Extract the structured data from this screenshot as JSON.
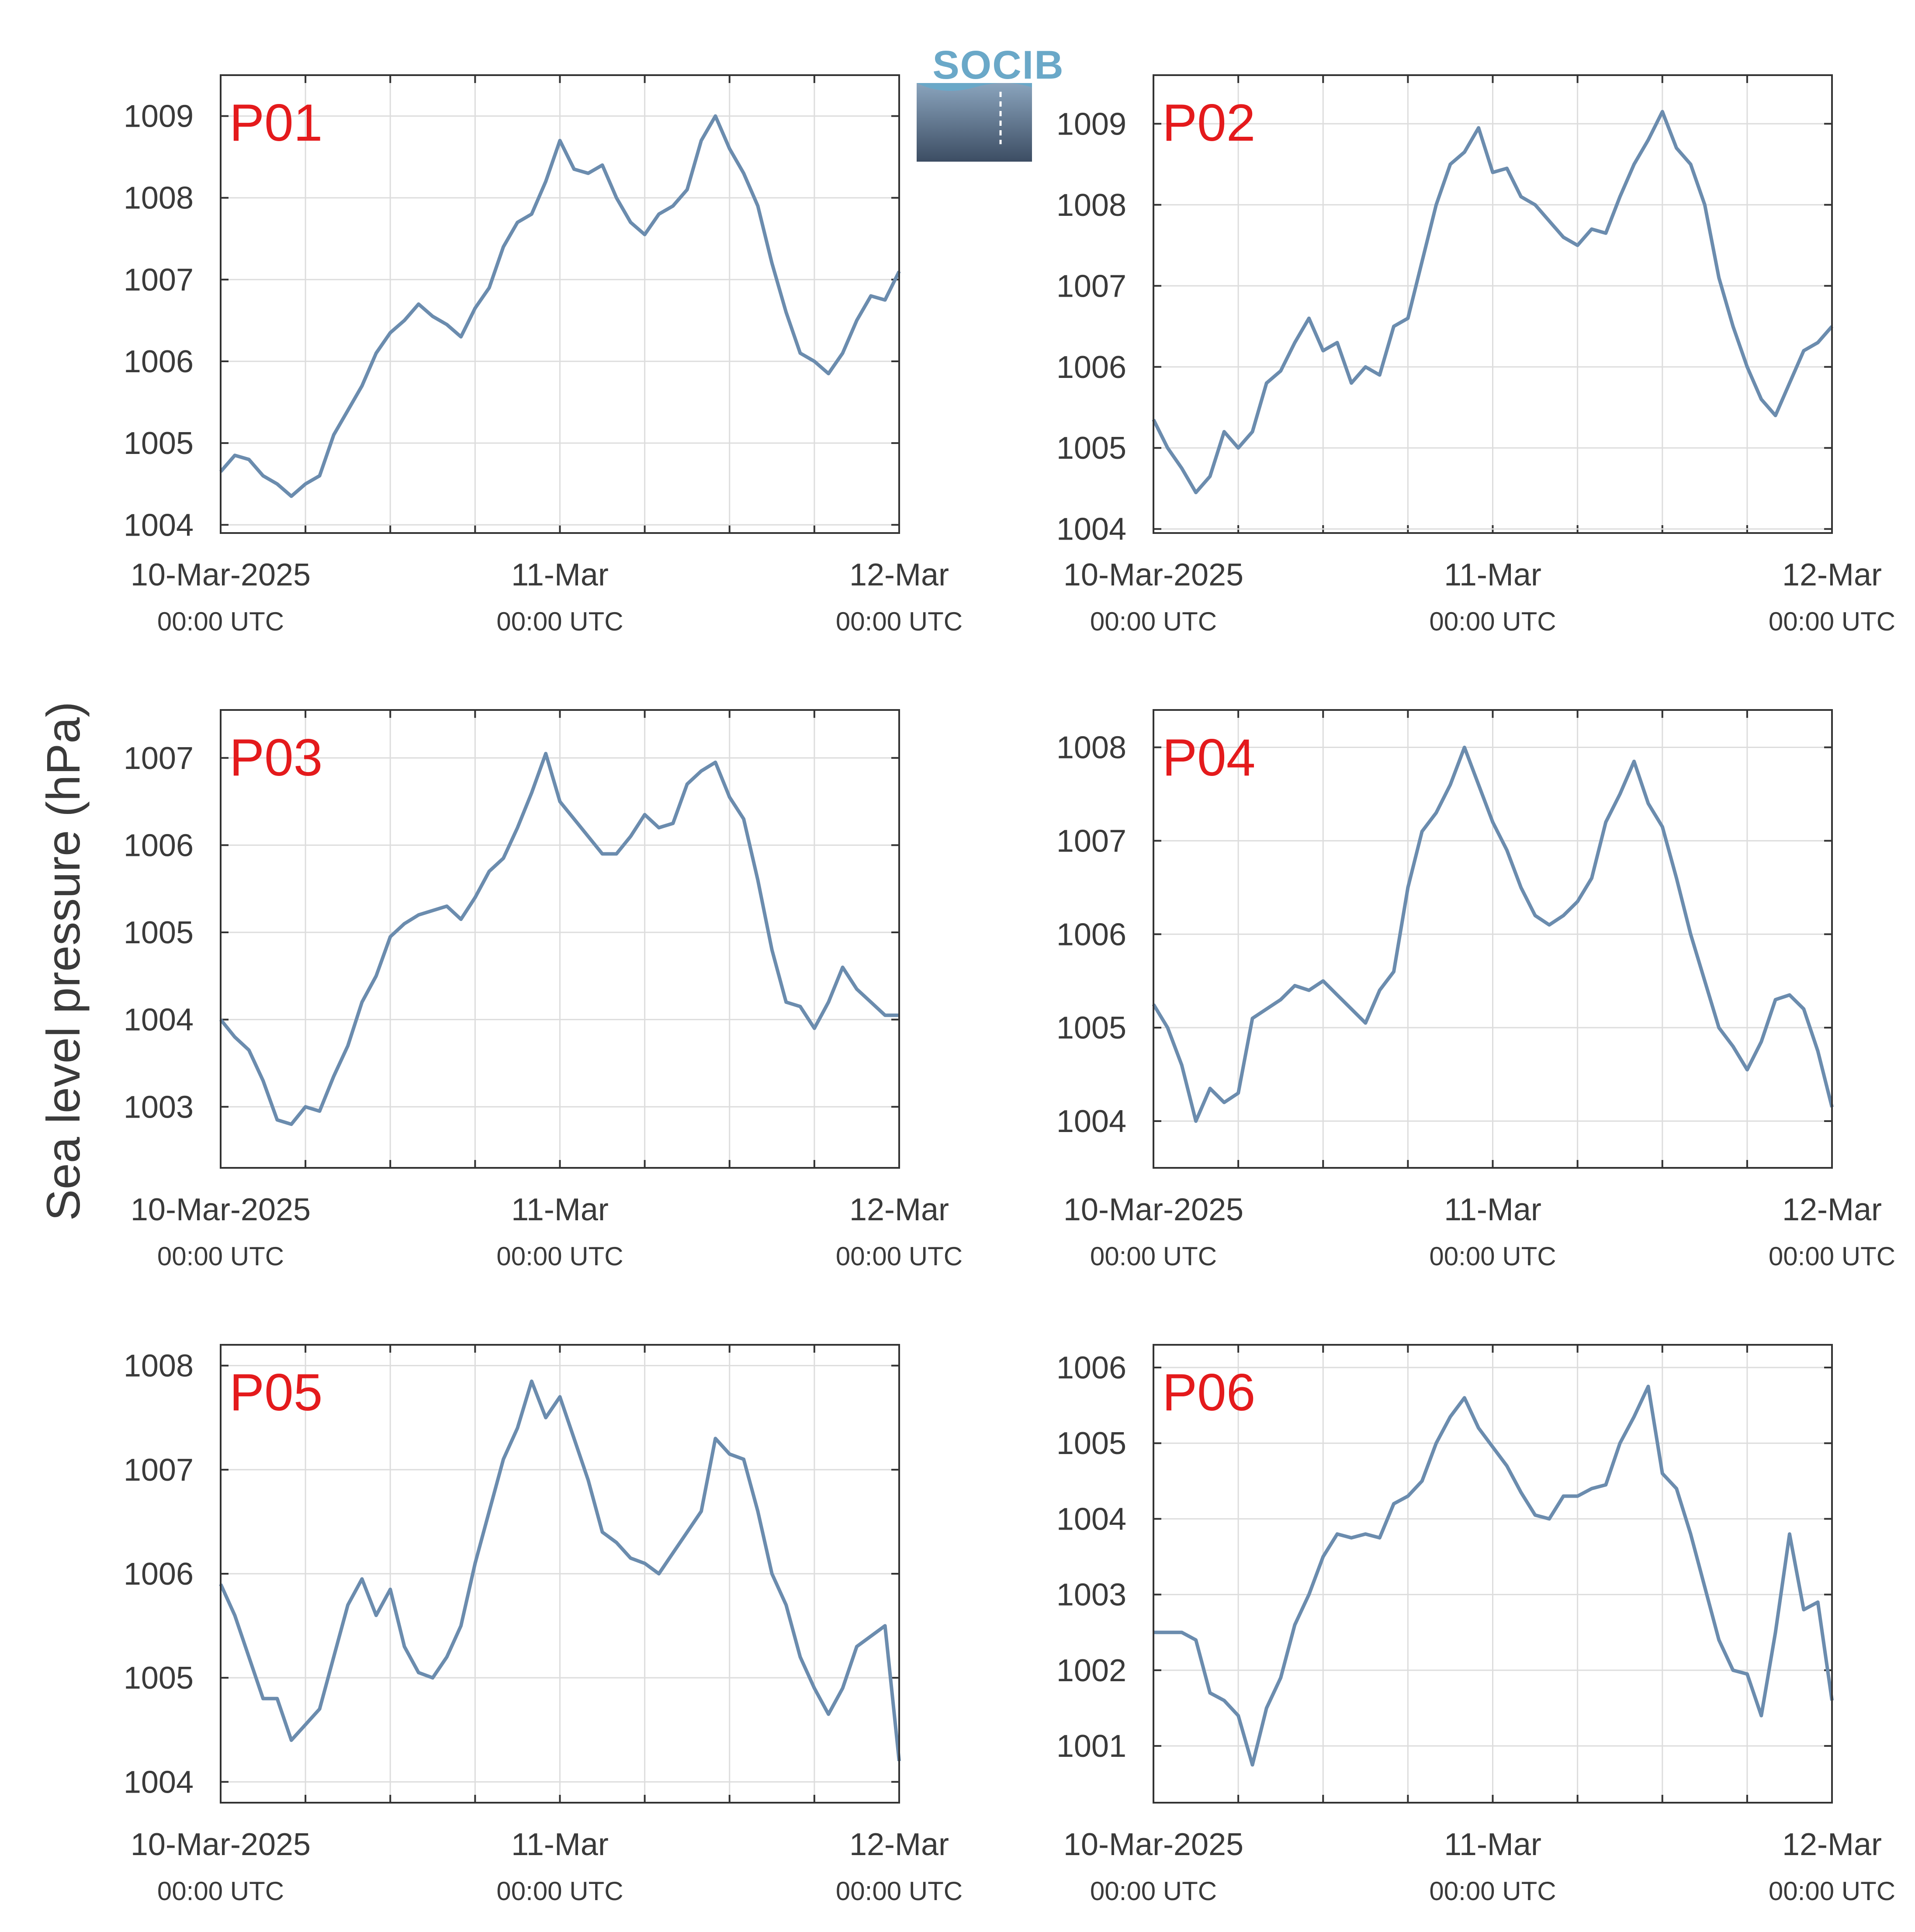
{
  "logo": {
    "text": "SOCIB"
  },
  "colors": {
    "series": "#6b8cae",
    "panel_label": "#e41a1c",
    "grid": "#dddddd",
    "axis": "#333333"
  },
  "chart_data": [
    {
      "type": "line",
      "title": "P01",
      "ylabel": "Sea level pressure (hPa)",
      "xlim": [
        "2025-03-10T00:00",
        "2025-03-12T00:00"
      ],
      "ylim": [
        1003.9,
        1009.5
      ],
      "yticks": [
        "1004",
        "1005",
        "1006",
        "1007",
        "1008",
        "1009"
      ],
      "xticks": [
        {
          "label": "10-Mar-2025",
          "sub": "00:00 UTC"
        },
        {
          "label": "11-Mar",
          "sub": "00:00 UTC"
        },
        {
          "label": "12-Mar",
          "sub": "00:00 UTC"
        }
      ],
      "grid": true,
      "series": [
        {
          "x": [
            "2025-03-10T00:00",
            "2025-03-10T01:00",
            "2025-03-10T02:00",
            "2025-03-10T03:00",
            "2025-03-10T04:00",
            "2025-03-10T05:00",
            "2025-03-10T06:00",
            "2025-03-10T07:00",
            "2025-03-10T08:00",
            "2025-03-10T09:00",
            "2025-03-10T10:00",
            "2025-03-10T11:00",
            "2025-03-10T12:00",
            "2025-03-10T13:00",
            "2025-03-10T14:00",
            "2025-03-10T15:00",
            "2025-03-10T16:00",
            "2025-03-10T17:00",
            "2025-03-10T18:00",
            "2025-03-10T19:00",
            "2025-03-10T20:00",
            "2025-03-10T21:00",
            "2025-03-10T22:00",
            "2025-03-10T23:00",
            "2025-03-11T00:00",
            "2025-03-11T01:00",
            "2025-03-11T02:00",
            "2025-03-11T03:00",
            "2025-03-11T04:00",
            "2025-03-11T05:00",
            "2025-03-11T06:00",
            "2025-03-11T07:00",
            "2025-03-11T08:00",
            "2025-03-11T09:00",
            "2025-03-11T10:00",
            "2025-03-11T11:00",
            "2025-03-11T12:00",
            "2025-03-11T13:00",
            "2025-03-11T14:00",
            "2025-03-11T15:00",
            "2025-03-11T16:00",
            "2025-03-11T17:00",
            "2025-03-11T18:00",
            "2025-03-11T19:00",
            "2025-03-11T20:00",
            "2025-03-11T21:00",
            "2025-03-11T22:00",
            "2025-03-11T23:00",
            "2025-03-12T00:00"
          ],
          "values": [
            1004.65,
            1004.85,
            1004.8,
            1004.6,
            1004.5,
            1004.35,
            1004.5,
            1004.6,
            1005.1,
            1005.4,
            1005.7,
            1006.1,
            1006.35,
            1006.5,
            1006.7,
            1006.55,
            1006.45,
            1006.3,
            1006.65,
            1006.9,
            1007.4,
            1007.7,
            1007.8,
            1008.2,
            1008.7,
            1008.35,
            1008.3,
            1008.4,
            1008.0,
            1007.7,
            1007.55,
            1007.8,
            1007.9,
            1008.1,
            1008.7,
            1009.0,
            1008.6,
            1008.3,
            1007.9,
            1007.2,
            1006.6,
            1006.1,
            1006.0,
            1005.85,
            1006.1,
            1006.5,
            1006.8,
            1006.75,
            1007.1
          ]
        }
      ]
    },
    {
      "type": "line",
      "title": "P02",
      "xlim": [
        "2025-03-10T00:00",
        "2025-03-12T00:00"
      ],
      "ylim": [
        1003.95,
        1009.6
      ],
      "yticks": [
        "1004",
        "1005",
        "1006",
        "1007",
        "1008",
        "1009"
      ],
      "xticks": [
        {
          "label": "10-Mar-2025",
          "sub": "00:00 UTC"
        },
        {
          "label": "11-Mar",
          "sub": "00:00 UTC"
        },
        {
          "label": "12-Mar",
          "sub": "00:00 UTC"
        }
      ],
      "grid": true,
      "series": [
        {
          "x": [
            "2025-03-10T00:00",
            "2025-03-10T01:00",
            "2025-03-10T02:00",
            "2025-03-10T03:00",
            "2025-03-10T04:00",
            "2025-03-10T05:00",
            "2025-03-10T06:00",
            "2025-03-10T07:00",
            "2025-03-10T08:00",
            "2025-03-10T09:00",
            "2025-03-10T10:00",
            "2025-03-10T11:00",
            "2025-03-10T12:00",
            "2025-03-10T13:00",
            "2025-03-10T14:00",
            "2025-03-10T15:00",
            "2025-03-10T16:00",
            "2025-03-10T17:00",
            "2025-03-10T18:00",
            "2025-03-10T19:00",
            "2025-03-10T20:00",
            "2025-03-10T21:00",
            "2025-03-10T22:00",
            "2025-03-10T23:00",
            "2025-03-11T00:00",
            "2025-03-11T01:00",
            "2025-03-11T02:00",
            "2025-03-11T03:00",
            "2025-03-11T04:00",
            "2025-03-11T05:00",
            "2025-03-11T06:00",
            "2025-03-11T07:00",
            "2025-03-11T08:00",
            "2025-03-11T09:00",
            "2025-03-11T10:00",
            "2025-03-11T11:00",
            "2025-03-11T12:00",
            "2025-03-11T13:00",
            "2025-03-11T14:00",
            "2025-03-11T15:00",
            "2025-03-11T16:00",
            "2025-03-11T17:00",
            "2025-03-11T18:00",
            "2025-03-11T19:00",
            "2025-03-11T20:00",
            "2025-03-11T21:00",
            "2025-03-11T22:00",
            "2025-03-11T23:00",
            "2025-03-12T00:00"
          ],
          "values": [
            1005.35,
            1005.0,
            1004.75,
            1004.45,
            1004.65,
            1005.2,
            1005.0,
            1005.2,
            1005.8,
            1005.95,
            1006.3,
            1006.6,
            1006.2,
            1006.3,
            1005.8,
            1006.0,
            1005.9,
            1006.5,
            1006.6,
            1007.3,
            1008.0,
            1008.5,
            1008.65,
            1008.95,
            1008.4,
            1008.45,
            1008.1,
            1008.0,
            1007.8,
            1007.6,
            1007.5,
            1007.7,
            1007.65,
            1008.1,
            1008.5,
            1008.8,
            1009.15,
            1008.7,
            1008.5,
            1008.0,
            1007.1,
            1006.5,
            1006.0,
            1005.6,
            1005.4,
            1005.8,
            1006.2,
            1006.3,
            1006.5
          ]
        }
      ]
    },
    {
      "type": "line",
      "title": "P03",
      "xlim": [
        "2025-03-10T00:00",
        "2025-03-12T00:00"
      ],
      "ylim": [
        1002.3,
        1007.55
      ],
      "yticks": [
        "1003",
        "1004",
        "1005",
        "1006",
        "1007"
      ],
      "xticks": [
        {
          "label": "10-Mar-2025",
          "sub": "00:00 UTC"
        },
        {
          "label": "11-Mar",
          "sub": "00:00 UTC"
        },
        {
          "label": "12-Mar",
          "sub": "00:00 UTC"
        }
      ],
      "grid": true,
      "series": [
        {
          "x": [
            "2025-03-10T00:00",
            "2025-03-10T01:00",
            "2025-03-10T02:00",
            "2025-03-10T03:00",
            "2025-03-10T04:00",
            "2025-03-10T05:00",
            "2025-03-10T06:00",
            "2025-03-10T07:00",
            "2025-03-10T08:00",
            "2025-03-10T09:00",
            "2025-03-10T10:00",
            "2025-03-10T11:00",
            "2025-03-10T12:00",
            "2025-03-10T13:00",
            "2025-03-10T14:00",
            "2025-03-10T15:00",
            "2025-03-10T16:00",
            "2025-03-10T17:00",
            "2025-03-10T18:00",
            "2025-03-10T19:00",
            "2025-03-10T20:00",
            "2025-03-10T21:00",
            "2025-03-10T22:00",
            "2025-03-10T23:00",
            "2025-03-11T00:00",
            "2025-03-11T01:00",
            "2025-03-11T02:00",
            "2025-03-11T03:00",
            "2025-03-11T04:00",
            "2025-03-11T05:00",
            "2025-03-11T06:00",
            "2025-03-11T07:00",
            "2025-03-11T08:00",
            "2025-03-11T09:00",
            "2025-03-11T10:00",
            "2025-03-11T11:00",
            "2025-03-11T12:00",
            "2025-03-11T13:00",
            "2025-03-11T14:00",
            "2025-03-11T15:00",
            "2025-03-11T16:00",
            "2025-03-11T17:00",
            "2025-03-11T18:00",
            "2025-03-11T19:00",
            "2025-03-11T20:00",
            "2025-03-11T21:00",
            "2025-03-11T22:00",
            "2025-03-11T23:00",
            "2025-03-12T00:00"
          ],
          "values": [
            1004.0,
            1003.8,
            1003.65,
            1003.3,
            1002.85,
            1002.8,
            1003.0,
            1002.95,
            1003.35,
            1003.7,
            1004.2,
            1004.5,
            1004.95,
            1005.1,
            1005.2,
            1005.25,
            1005.3,
            1005.15,
            1005.4,
            1005.7,
            1005.85,
            1006.2,
            1006.6,
            1007.05,
            1006.5,
            1006.3,
            1006.1,
            1005.9,
            1005.9,
            1006.1,
            1006.35,
            1006.2,
            1006.25,
            1006.7,
            1006.85,
            1006.95,
            1006.55,
            1006.3,
            1005.6,
            1004.8,
            1004.2,
            1004.15,
            1003.9,
            1004.2,
            1004.6,
            1004.35,
            1004.2,
            1004.05,
            1004.05
          ]
        }
      ]
    },
    {
      "type": "line",
      "title": "P04",
      "xlim": [
        "2025-03-10T00:00",
        "2025-03-12T00:00"
      ],
      "ylim": [
        1003.5,
        1008.4
      ],
      "yticks": [
        "1004",
        "1005",
        "1006",
        "1007",
        "1008"
      ],
      "xticks": [
        {
          "label": "10-Mar-2025",
          "sub": "00:00 UTC"
        },
        {
          "label": "11-Mar",
          "sub": "00:00 UTC"
        },
        {
          "label": "12-Mar",
          "sub": "00:00 UTC"
        }
      ],
      "grid": true,
      "series": [
        {
          "x": [
            "2025-03-10T00:00",
            "2025-03-10T01:00",
            "2025-03-10T02:00",
            "2025-03-10T03:00",
            "2025-03-10T04:00",
            "2025-03-10T05:00",
            "2025-03-10T06:00",
            "2025-03-10T07:00",
            "2025-03-10T08:00",
            "2025-03-10T09:00",
            "2025-03-10T10:00",
            "2025-03-10T11:00",
            "2025-03-10T12:00",
            "2025-03-10T13:00",
            "2025-03-10T14:00",
            "2025-03-10T15:00",
            "2025-03-10T16:00",
            "2025-03-10T17:00",
            "2025-03-10T18:00",
            "2025-03-10T19:00",
            "2025-03-10T20:00",
            "2025-03-10T21:00",
            "2025-03-10T22:00",
            "2025-03-10T23:00",
            "2025-03-11T00:00",
            "2025-03-11T01:00",
            "2025-03-11T02:00",
            "2025-03-11T03:00",
            "2025-03-11T04:00",
            "2025-03-11T05:00",
            "2025-03-11T06:00",
            "2025-03-11T07:00",
            "2025-03-11T08:00",
            "2025-03-11T09:00",
            "2025-03-11T10:00",
            "2025-03-11T11:00",
            "2025-03-11T12:00",
            "2025-03-11T13:00",
            "2025-03-11T14:00",
            "2025-03-11T15:00",
            "2025-03-11T16:00",
            "2025-03-11T17:00",
            "2025-03-11T18:00",
            "2025-03-11T19:00",
            "2025-03-11T20:00",
            "2025-03-11T21:00",
            "2025-03-11T22:00",
            "2025-03-11T23:00",
            "2025-03-12T00:00"
          ],
          "values": [
            1005.25,
            1005.0,
            1004.6,
            1004.0,
            1004.35,
            1004.2,
            1004.3,
            1005.1,
            1005.2,
            1005.3,
            1005.45,
            1005.4,
            1005.5,
            1005.35,
            1005.2,
            1005.05,
            1005.4,
            1005.6,
            1006.5,
            1007.1,
            1007.3,
            1007.6,
            1008.0,
            1007.6,
            1007.2,
            1006.9,
            1006.5,
            1006.2,
            1006.1,
            1006.2,
            1006.35,
            1006.6,
            1007.2,
            1007.5,
            1007.85,
            1007.4,
            1007.15,
            1006.6,
            1006.0,
            1005.5,
            1005.0,
            1004.8,
            1004.55,
            1004.85,
            1005.3,
            1005.35,
            1005.2,
            1004.75,
            1004.15
          ]
        }
      ]
    },
    {
      "type": "line",
      "title": "P05",
      "xlim": [
        "2025-03-10T00:00",
        "2025-03-12T00:00"
      ],
      "ylim": [
        1003.8,
        1008.2
      ],
      "yticks": [
        "1004",
        "1005",
        "1006",
        "1007",
        "1008"
      ],
      "xticks": [
        {
          "label": "10-Mar-2025",
          "sub": "00:00 UTC"
        },
        {
          "label": "11-Mar",
          "sub": "00:00 UTC"
        },
        {
          "label": "12-Mar",
          "sub": "00:00 UTC"
        }
      ],
      "grid": true,
      "series": [
        {
          "x": [
            "2025-03-10T00:00",
            "2025-03-10T01:00",
            "2025-03-10T02:00",
            "2025-03-10T03:00",
            "2025-03-10T04:00",
            "2025-03-10T05:00",
            "2025-03-10T06:00",
            "2025-03-10T07:00",
            "2025-03-10T08:00",
            "2025-03-10T09:00",
            "2025-03-10T10:00",
            "2025-03-10T11:00",
            "2025-03-10T12:00",
            "2025-03-10T13:00",
            "2025-03-10T14:00",
            "2025-03-10T15:00",
            "2025-03-10T16:00",
            "2025-03-10T17:00",
            "2025-03-10T18:00",
            "2025-03-10T19:00",
            "2025-03-10T20:00",
            "2025-03-10T21:00",
            "2025-03-10T22:00",
            "2025-03-10T23:00",
            "2025-03-11T00:00",
            "2025-03-11T01:00",
            "2025-03-11T02:00",
            "2025-03-11T03:00",
            "2025-03-11T04:00",
            "2025-03-11T05:00",
            "2025-03-11T06:00",
            "2025-03-11T07:00",
            "2025-03-11T08:00",
            "2025-03-11T09:00",
            "2025-03-11T10:00",
            "2025-03-11T11:00",
            "2025-03-11T12:00",
            "2025-03-11T13:00",
            "2025-03-11T14:00",
            "2025-03-11T15:00",
            "2025-03-11T16:00",
            "2025-03-11T17:00",
            "2025-03-11T18:00",
            "2025-03-11T19:00",
            "2025-03-11T20:00",
            "2025-03-11T21:00",
            "2025-03-11T22:00",
            "2025-03-11T23:00",
            "2025-03-12T00:00"
          ],
          "values": [
            1005.9,
            1005.6,
            1005.2,
            1004.8,
            1004.8,
            1004.4,
            1004.55,
            1004.7,
            1005.2,
            1005.7,
            1005.95,
            1005.6,
            1005.85,
            1005.3,
            1005.05,
            1005.0,
            1005.2,
            1005.5,
            1006.1,
            1006.6,
            1007.1,
            1007.4,
            1007.85,
            1007.5,
            1007.7,
            1007.3,
            1006.9,
            1006.4,
            1006.3,
            1006.15,
            1006.1,
            1006.0,
            1006.2,
            1006.4,
            1006.6,
            1007.3,
            1007.15,
            1007.1,
            1006.6,
            1006.0,
            1005.7,
            1005.2,
            1004.9,
            1004.65,
            1004.9,
            1005.3,
            1005.4,
            1005.5,
            1004.2
          ]
        }
      ]
    },
    {
      "type": "line",
      "title": "P06",
      "xlim": [
        "2025-03-10T00:00",
        "2025-03-12T00:00"
      ],
      "ylim": [
        1000.25,
        1006.3
      ],
      "yticks": [
        "1001",
        "1002",
        "1003",
        "1004",
        "1005",
        "1006"
      ],
      "xticks": [
        {
          "label": "10-Mar-2025",
          "sub": "00:00 UTC"
        },
        {
          "label": "11-Mar",
          "sub": "00:00 UTC"
        },
        {
          "label": "12-Mar",
          "sub": "00:00 UTC"
        }
      ],
      "grid": true,
      "series": [
        {
          "x": [
            "2025-03-10T00:00",
            "2025-03-10T01:00",
            "2025-03-10T02:00",
            "2025-03-10T03:00",
            "2025-03-10T04:00",
            "2025-03-10T05:00",
            "2025-03-10T06:00",
            "2025-03-10T07:00",
            "2025-03-10T08:00",
            "2025-03-10T09:00",
            "2025-03-10T10:00",
            "2025-03-10T11:00",
            "2025-03-10T12:00",
            "2025-03-10T13:00",
            "2025-03-10T14:00",
            "2025-03-10T15:00",
            "2025-03-10T16:00",
            "2025-03-10T17:00",
            "2025-03-10T18:00",
            "2025-03-10T19:00",
            "2025-03-10T20:00",
            "2025-03-10T21:00",
            "2025-03-10T22:00",
            "2025-03-10T23:00",
            "2025-03-11T00:00",
            "2025-03-11T01:00",
            "2025-03-11T02:00",
            "2025-03-11T03:00",
            "2025-03-11T04:00",
            "2025-03-11T05:00",
            "2025-03-11T06:00",
            "2025-03-11T07:00",
            "2025-03-11T08:00",
            "2025-03-11T09:00",
            "2025-03-11T10:00",
            "2025-03-11T11:00",
            "2025-03-11T12:00",
            "2025-03-11T13:00",
            "2025-03-11T14:00",
            "2025-03-11T15:00",
            "2025-03-11T16:00",
            "2025-03-11T17:00",
            "2025-03-11T18:00",
            "2025-03-11T19:00",
            "2025-03-11T20:00",
            "2025-03-11T21:00",
            "2025-03-11T22:00",
            "2025-03-11T23:00",
            "2025-03-12T00:00"
          ],
          "values": [
            1002.5,
            1002.5,
            1002.5,
            1002.4,
            1001.7,
            1001.6,
            1001.4,
            1000.75,
            1001.5,
            1001.9,
            1002.6,
            1003.0,
            1003.5,
            1003.8,
            1003.75,
            1003.8,
            1003.75,
            1004.2,
            1004.3,
            1004.5,
            1005.0,
            1005.35,
            1005.6,
            1005.2,
            1004.95,
            1004.7,
            1004.35,
            1004.05,
            1004.0,
            1004.3,
            1004.3,
            1004.4,
            1004.45,
            1005.0,
            1005.35,
            1005.75,
            1004.6,
            1004.4,
            1003.8,
            1003.1,
            1002.4,
            1002.0,
            1001.95,
            1001.4,
            1002.5,
            1003.8,
            1002.8,
            1002.9,
            1001.6
          ]
        }
      ]
    }
  ]
}
